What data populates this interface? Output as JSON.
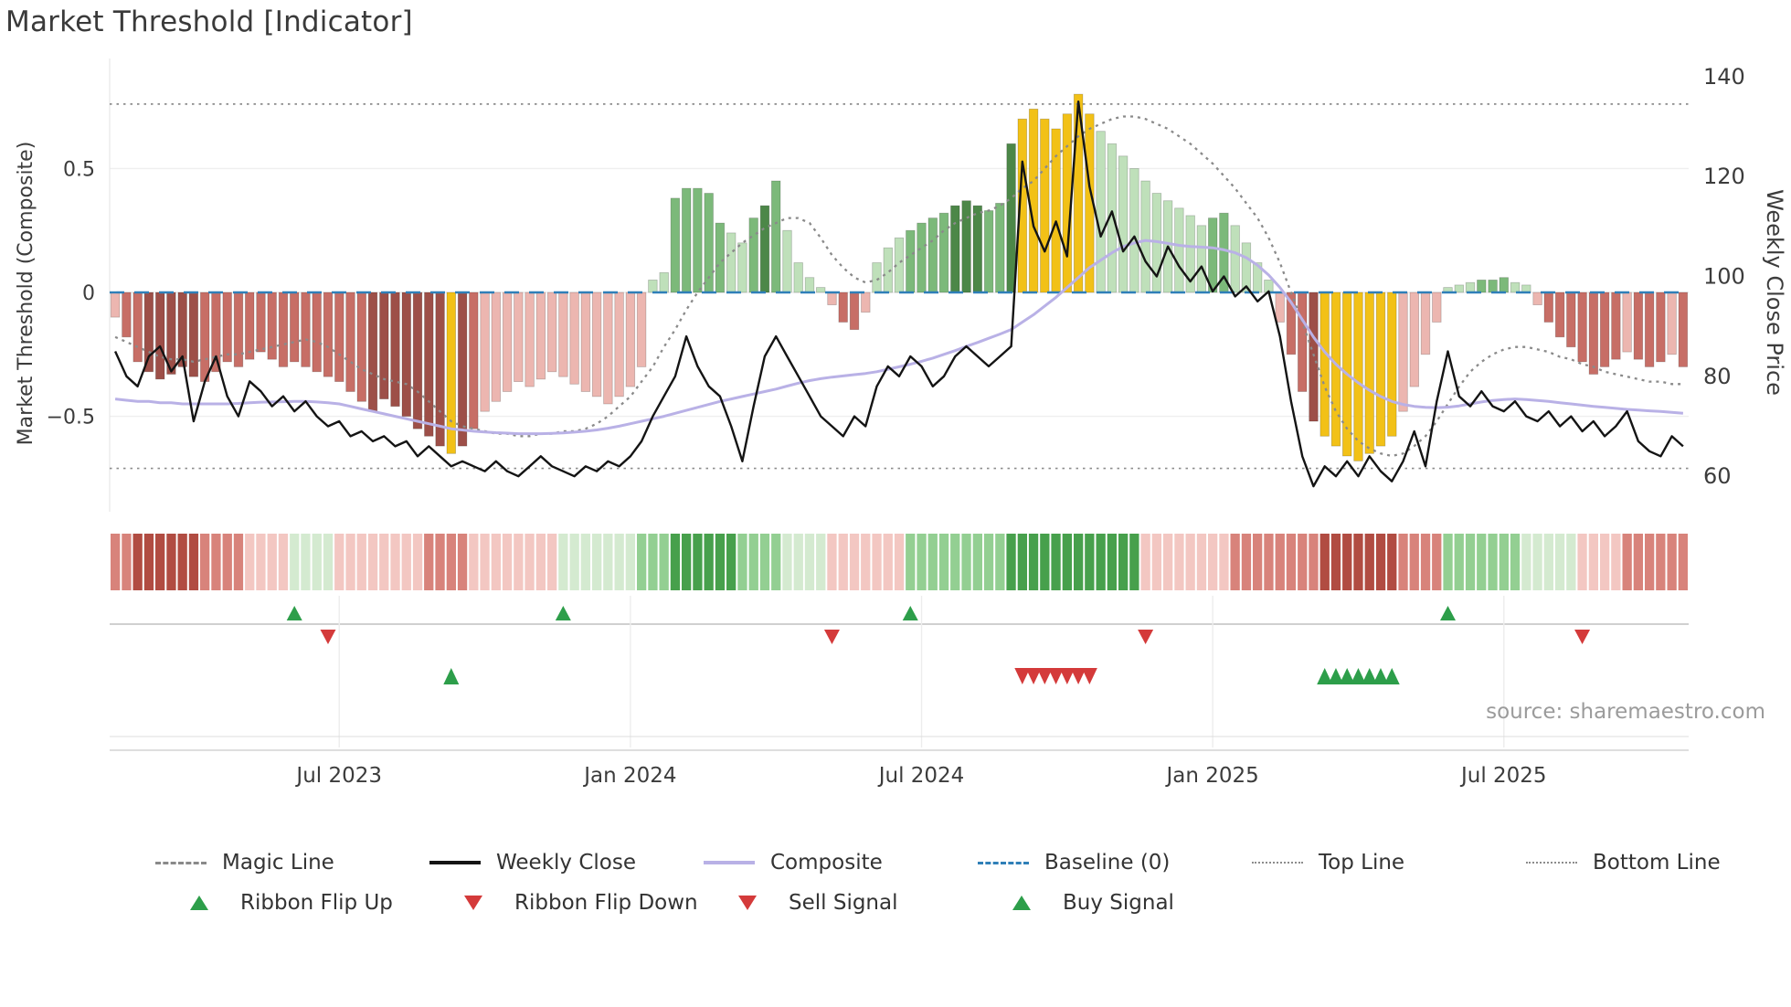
{
  "source": "source: sharemaestro.com",
  "legend": {
    "row1": [
      {
        "label": "Magic Line"
      },
      {
        "label": "Weekly Close"
      },
      {
        "label": "Composite"
      },
      {
        "label": "Baseline (0)"
      },
      {
        "label": "Top Line"
      },
      {
        "label": "Bottom Line"
      }
    ],
    "row2": [
      {
        "label": "Ribbon Flip Up"
      },
      {
        "label": "Ribbon Flip Down"
      },
      {
        "label": "Sell Signal"
      },
      {
        "label": "Buy Signal"
      }
    ]
  },
  "chart_data": {
    "type": "combo",
    "title": "Market Threshold [Indicator]",
    "subtitle": "",
    "n_weeks": 141,
    "x_ticks": [
      {
        "index": 20,
        "label": "Jul 2023"
      },
      {
        "index": 46,
        "label": "Jan 2024"
      },
      {
        "index": 72,
        "label": "Jul 2024"
      },
      {
        "index": 98,
        "label": "Jan 2025"
      },
      {
        "index": 124,
        "label": "Jul 2025"
      }
    ],
    "left_axis": {
      "label": "Market Threshold (Composite)",
      "range": [
        -0.885,
        0.885
      ],
      "ticks": [
        {
          "v": 0.5,
          "label": "0.5"
        },
        {
          "v": 0,
          "label": "0"
        },
        {
          "v": -0.5,
          "label": "−0.5"
        }
      ]
    },
    "right_axis": {
      "label": "Weekly Close Price",
      "range": [
        52.9,
        140.7
      ],
      "ticks": [
        {
          "v": 140,
          "label": "140"
        },
        {
          "v": 120,
          "label": "120"
        },
        {
          "v": 100,
          "label": "100"
        },
        {
          "v": 80,
          "label": "80"
        },
        {
          "v": 60,
          "label": "60"
        }
      ]
    },
    "top_line": 0.76,
    "bottom_line": -0.71,
    "baseline": 0,
    "colors": {
      "magic_line": "#8a8a8a",
      "weekly_close": "#141414",
      "composite": "#b9b1e6",
      "baseline": "#2f7fb8",
      "guide": "#8c8c8c",
      "buy": "#2d9e4a",
      "sell": "#d43a3a"
    },
    "palette": {
      "bars": {
        "pink": "#ecb6b0",
        "red": "#c76e66",
        "darkred": "#9d4f48",
        "lightgreen": "#bfe0ba",
        "green": "#7cb97a",
        "darkgreen": "#4c8748",
        "gold": "#f2c117"
      },
      "ribbon": {
        "r1": "#f3c7c2",
        "r2": "#d8837b",
        "r3": "#b14c42",
        "g1": "#d4ead0",
        "g2": "#93cf92",
        "g3": "#47a04c"
      }
    },
    "bars": {
      "values": [
        -0.1,
        -0.18,
        -0.28,
        -0.32,
        -0.35,
        -0.33,
        -0.3,
        -0.34,
        -0.36,
        -0.32,
        -0.28,
        -0.3,
        -0.27,
        -0.24,
        -0.27,
        -0.3,
        -0.28,
        -0.3,
        -0.32,
        -0.34,
        -0.36,
        -0.4,
        -0.44,
        -0.48,
        -0.43,
        -0.46,
        -0.5,
        -0.55,
        -0.58,
        -0.62,
        -0.65,
        -0.62,
        -0.55,
        -0.48,
        -0.44,
        -0.4,
        -0.36,
        -0.38,
        -0.35,
        -0.32,
        -0.34,
        -0.37,
        -0.4,
        -0.42,
        -0.45,
        -0.42,
        -0.38,
        -0.3,
        0.05,
        0.08,
        0.38,
        0.42,
        0.42,
        0.4,
        0.28,
        0.24,
        0.2,
        0.3,
        0.35,
        0.45,
        0.25,
        0.12,
        0.06,
        0.02,
        -0.05,
        -0.12,
        -0.15,
        -0.08,
        0.12,
        0.18,
        0.22,
        0.25,
        0.28,
        0.3,
        0.32,
        0.35,
        0.37,
        0.35,
        0.33,
        0.36,
        0.6,
        0.7,
        0.74,
        0.7,
        0.66,
        0.72,
        0.8,
        0.72,
        0.65,
        0.6,
        0.55,
        0.5,
        0.45,
        0.4,
        0.37,
        0.34,
        0.31,
        0.27,
        0.3,
        0.32,
        0.27,
        0.2,
        0.12,
        0.05,
        -0.12,
        -0.25,
        -0.4,
        -0.52,
        -0.58,
        -0.62,
        -0.66,
        -0.68,
        -0.65,
        -0.62,
        -0.58,
        -0.48,
        -0.38,
        -0.25,
        -0.12,
        0.02,
        0.03,
        0.04,
        0.05,
        0.05,
        0.06,
        0.04,
        0.03,
        -0.05,
        -0.12,
        -0.18,
        -0.22,
        -0.28,
        -0.33,
        -0.3,
        -0.27,
        -0.24,
        -0.27,
        -0.3,
        -0.28,
        -0.25,
        -0.3
      ],
      "colors": [
        "pink",
        "red",
        "red",
        "darkred",
        "darkred",
        "darkred",
        "darkred",
        "darkred",
        "red",
        "red",
        "red",
        "red",
        "red",
        "red",
        "red",
        "red",
        "red",
        "red",
        "red",
        "red",
        "red",
        "red",
        "red",
        "darkred",
        "darkred",
        "darkred",
        "darkred",
        "darkred",
        "darkred",
        "darkred",
        "gold",
        "darkred",
        "red",
        "pink",
        "pink",
        "pink",
        "pink",
        "pink",
        "pink",
        "pink",
        "pink",
        "pink",
        "pink",
        "pink",
        "pink",
        "pink",
        "pink",
        "pink",
        "lightgreen",
        "lightgreen",
        "green",
        "green",
        "green",
        "green",
        "green",
        "lightgreen",
        "lightgreen",
        "green",
        "darkgreen",
        "green",
        "lightgreen",
        "lightgreen",
        "lightgreen",
        "lightgreen",
        "pink",
        "red",
        "red",
        "pink",
        "lightgreen",
        "lightgreen",
        "lightgreen",
        "green",
        "green",
        "green",
        "green",
        "darkgreen",
        "darkgreen",
        "darkgreen",
        "green",
        "green",
        "darkgreen",
        "gold",
        "gold",
        "gold",
        "gold",
        "gold",
        "gold",
        "gold",
        "lightgreen",
        "lightgreen",
        "lightgreen",
        "lightgreen",
        "lightgreen",
        "lightgreen",
        "lightgreen",
        "lightgreen",
        "lightgreen",
        "lightgreen",
        "green",
        "green",
        "lightgreen",
        "lightgreen",
        "lightgreen",
        "lightgreen",
        "pink",
        "red",
        "red",
        "darkred",
        "gold",
        "gold",
        "gold",
        "gold",
        "gold",
        "gold",
        "gold",
        "pink",
        "pink",
        "pink",
        "pink",
        "lightgreen",
        "lightgreen",
        "lightgreen",
        "green",
        "green",
        "green",
        "lightgreen",
        "lightgreen",
        "pink",
        "red",
        "red",
        "red",
        "red",
        "red",
        "red",
        "red",
        "pink",
        "red",
        "red",
        "red",
        "pink",
        "red"
      ]
    },
    "weekly_close": [
      85,
      80,
      78,
      84,
      86,
      81,
      84,
      71,
      79,
      84,
      76,
      72,
      79,
      77,
      74,
      76,
      73,
      75,
      72,
      70,
      71,
      68,
      69,
      67,
      68,
      66,
      67,
      64,
      66,
      64,
      62,
      63,
      62,
      61,
      63,
      61,
      60,
      62,
      64,
      62,
      61,
      60,
      62,
      61,
      63,
      62,
      64,
      67,
      72,
      76,
      80,
      88,
      82,
      78,
      76,
      70,
      63,
      74,
      84,
      88,
      84,
      80,
      76,
      72,
      70,
      68,
      72,
      70,
      78,
      82,
      80,
      84,
      82,
      78,
      80,
      84,
      86,
      84,
      82,
      84,
      86,
      123,
      110,
      105,
      111,
      104,
      135,
      118,
      108,
      113,
      105,
      108,
      103,
      100,
      106,
      102,
      99,
      102,
      97,
      100,
      96,
      98,
      95,
      97,
      88,
      75,
      64,
      58,
      62,
      60,
      63,
      60,
      64,
      61,
      59,
      63,
      69,
      62,
      75,
      85,
      76,
      74,
      77,
      74,
      73,
      75,
      72,
      71,
      73,
      70,
      72,
      69,
      71,
      68,
      70,
      73,
      67,
      65,
      64,
      68,
      66
    ],
    "magic_line": [
      -0.18,
      -0.2,
      -0.22,
      -0.24,
      -0.26,
      -0.27,
      -0.27,
      -0.28,
      -0.27,
      -0.26,
      -0.25,
      -0.25,
      -0.24,
      -0.23,
      -0.22,
      -0.21,
      -0.2,
      -0.19,
      -0.2,
      -0.22,
      -0.25,
      -0.28,
      -0.31,
      -0.33,
      -0.35,
      -0.36,
      -0.37,
      -0.4,
      -0.44,
      -0.48,
      -0.52,
      -0.54,
      -0.55,
      -0.56,
      -0.57,
      -0.57,
      -0.58,
      -0.58,
      -0.57,
      -0.57,
      -0.56,
      -0.56,
      -0.55,
      -0.53,
      -0.5,
      -0.46,
      -0.42,
      -0.36,
      -0.3,
      -0.22,
      -0.15,
      -0.07,
      0.0,
      0.06,
      0.12,
      0.16,
      0.2,
      0.23,
      0.26,
      0.28,
      0.3,
      0.3,
      0.28,
      0.22,
      0.15,
      0.1,
      0.06,
      0.04,
      0.05,
      0.08,
      0.12,
      0.15,
      0.18,
      0.21,
      0.25,
      0.28,
      0.3,
      0.32,
      0.33,
      0.35,
      0.38,
      0.42,
      0.45,
      0.5,
      0.55,
      0.59,
      0.63,
      0.66,
      0.68,
      0.7,
      0.71,
      0.71,
      0.7,
      0.68,
      0.66,
      0.63,
      0.6,
      0.56,
      0.52,
      0.47,
      0.42,
      0.36,
      0.3,
      0.22,
      0.12,
      0.0,
      -0.12,
      -0.25,
      -0.38,
      -0.48,
      -0.55,
      -0.6,
      -0.63,
      -0.65,
      -0.66,
      -0.65,
      -0.62,
      -0.58,
      -0.52,
      -0.45,
      -0.38,
      -0.32,
      -0.28,
      -0.25,
      -0.23,
      -0.22,
      -0.22,
      -0.23,
      -0.24,
      -0.26,
      -0.27,
      -0.29,
      -0.3,
      -0.32,
      -0.33,
      -0.34,
      -0.35,
      -0.36,
      -0.36,
      -0.37,
      -0.37
    ],
    "composite": [
      -0.43,
      -0.435,
      -0.44,
      -0.44,
      -0.445,
      -0.445,
      -0.45,
      -0.45,
      -0.45,
      -0.45,
      -0.45,
      -0.448,
      -0.445,
      -0.443,
      -0.442,
      -0.441,
      -0.44,
      -0.44,
      -0.442,
      -0.445,
      -0.45,
      -0.46,
      -0.47,
      -0.48,
      -0.49,
      -0.5,
      -0.51,
      -0.52,
      -0.53,
      -0.54,
      -0.55,
      -0.555,
      -0.56,
      -0.563,
      -0.566,
      -0.568,
      -0.57,
      -0.57,
      -0.57,
      -0.569,
      -0.567,
      -0.564,
      -0.56,
      -0.555,
      -0.548,
      -0.54,
      -0.53,
      -0.52,
      -0.51,
      -0.5,
      -0.488,
      -0.476,
      -0.464,
      -0.452,
      -0.44,
      -0.43,
      -0.42,
      -0.41,
      -0.4,
      -0.39,
      -0.378,
      -0.366,
      -0.356,
      -0.348,
      -0.342,
      -0.337,
      -0.332,
      -0.327,
      -0.32,
      -0.31,
      -0.3,
      -0.29,
      -0.278,
      -0.265,
      -0.25,
      -0.235,
      -0.218,
      -0.202,
      -0.185,
      -0.168,
      -0.15,
      -0.12,
      -0.09,
      -0.055,
      -0.02,
      0.02,
      0.06,
      0.1,
      0.13,
      0.16,
      0.185,
      0.2,
      0.21,
      0.205,
      0.198,
      0.19,
      0.185,
      0.183,
      0.18,
      0.172,
      0.16,
      0.14,
      0.11,
      0.07,
      0.02,
      -0.04,
      -0.11,
      -0.18,
      -0.24,
      -0.29,
      -0.33,
      -0.365,
      -0.395,
      -0.42,
      -0.44,
      -0.452,
      -0.46,
      -0.464,
      -0.465,
      -0.463,
      -0.458,
      -0.45,
      -0.442,
      -0.436,
      -0.432,
      -0.43,
      -0.432,
      -0.436,
      -0.44,
      -0.445,
      -0.45,
      -0.455,
      -0.46,
      -0.464,
      -0.468,
      -0.472,
      -0.475,
      -0.478,
      -0.48,
      -0.484,
      -0.488
    ],
    "ribbon": [
      "r2",
      "r2",
      "r3",
      "r3",
      "r3",
      "r3",
      "r3",
      "r3",
      "r2",
      "r2",
      "r2",
      "r2",
      "r1",
      "r1",
      "r1",
      "r1",
      "g1",
      "g1",
      "g1",
      "g1",
      "r1",
      "r1",
      "r1",
      "r1",
      "r1",
      "r1",
      "r1",
      "r1",
      "r2",
      "r2",
      "r2",
      "r2",
      "r1",
      "r1",
      "r1",
      "r1",
      "r1",
      "r1",
      "r1",
      "r1",
      "g1",
      "g1",
      "g1",
      "g1",
      "g1",
      "g1",
      "g1",
      "g2",
      "g2",
      "g2",
      "g3",
      "g3",
      "g3",
      "g3",
      "g3",
      "g3",
      "g2",
      "g2",
      "g2",
      "g2",
      "g1",
      "g1",
      "g1",
      "g1",
      "r1",
      "r1",
      "r1",
      "r1",
      "r1",
      "r1",
      "r1",
      "g2",
      "g2",
      "g2",
      "g2",
      "g2",
      "g2",
      "g2",
      "g2",
      "g2",
      "g3",
      "g3",
      "g3",
      "g3",
      "g3",
      "g3",
      "g3",
      "g3",
      "g3",
      "g3",
      "g3",
      "g3",
      "r1",
      "r1",
      "r1",
      "r1",
      "r1",
      "r1",
      "r1",
      "r1",
      "r2",
      "r2",
      "r2",
      "r2",
      "r2",
      "r2",
      "r2",
      "r2",
      "r3",
      "r3",
      "r3",
      "r3",
      "r3",
      "r3",
      "r3",
      "r2",
      "r2",
      "r2",
      "r2",
      "g2",
      "g2",
      "g2",
      "g2",
      "g2",
      "g2",
      "g2",
      "g1",
      "g1",
      "g1",
      "g1",
      "g1",
      "r1",
      "r1",
      "r1",
      "r1",
      "r2",
      "r2",
      "r2",
      "r2",
      "r2",
      "r2"
    ],
    "signals": {
      "ribbon_flip_up": [
        16,
        40,
        71,
        119
      ],
      "ribbon_flip_down": [
        19,
        64,
        92,
        131
      ],
      "sell": [
        81,
        82,
        83,
        84,
        85,
        86,
        87
      ],
      "buy": [
        30,
        108,
        109,
        110,
        111,
        112,
        113,
        114
      ]
    }
  }
}
